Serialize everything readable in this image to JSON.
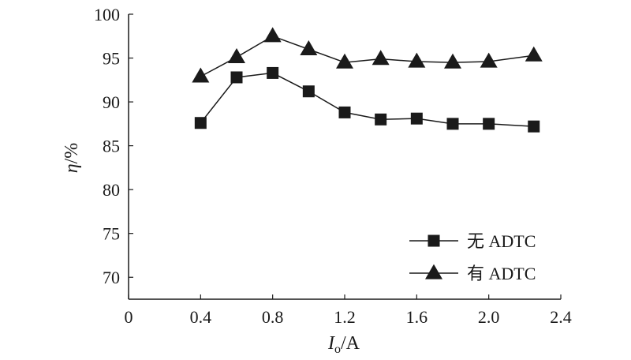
{
  "chart_data": {
    "type": "line",
    "xlabel": {
      "symbol": "I",
      "subscript": "o",
      "unit": "/A"
    },
    "ylabel": {
      "symbol": "η",
      "unit": "/%"
    },
    "xlim": [
      0,
      2.4
    ],
    "ylim": [
      67.5,
      100
    ],
    "xticks": [
      0,
      0.4,
      0.8,
      1.2,
      1.6,
      2.0,
      2.4
    ],
    "xtick_labels": [
      "0",
      "0.4",
      "0.8",
      "1.2",
      "1.6",
      "2.0",
      "2.4"
    ],
    "yticks": [
      70,
      75,
      80,
      85,
      90,
      95,
      100
    ],
    "ytick_labels": [
      "70",
      "75",
      "80",
      "85",
      "90",
      "95",
      "100"
    ],
    "grid": false,
    "legend_position": "bottom-right",
    "series": [
      {
        "name": "无 ADTC",
        "marker": "square",
        "x": [
          0.4,
          0.6,
          0.8,
          1.0,
          1.2,
          1.4,
          1.6,
          1.8,
          2.0,
          2.25
        ],
        "values": [
          87.6,
          92.8,
          93.3,
          91.2,
          88.8,
          88.0,
          88.1,
          87.5,
          87.5,
          87.2
        ]
      },
      {
        "name": "有 ADTC",
        "marker": "triangle",
        "x": [
          0.4,
          0.6,
          0.8,
          1.0,
          1.2,
          1.4,
          1.6,
          1.8,
          2.0,
          2.25
        ],
        "values": [
          92.9,
          95.1,
          97.5,
          96.0,
          94.5,
          94.9,
          94.6,
          94.5,
          94.6,
          95.3
        ]
      }
    ]
  }
}
